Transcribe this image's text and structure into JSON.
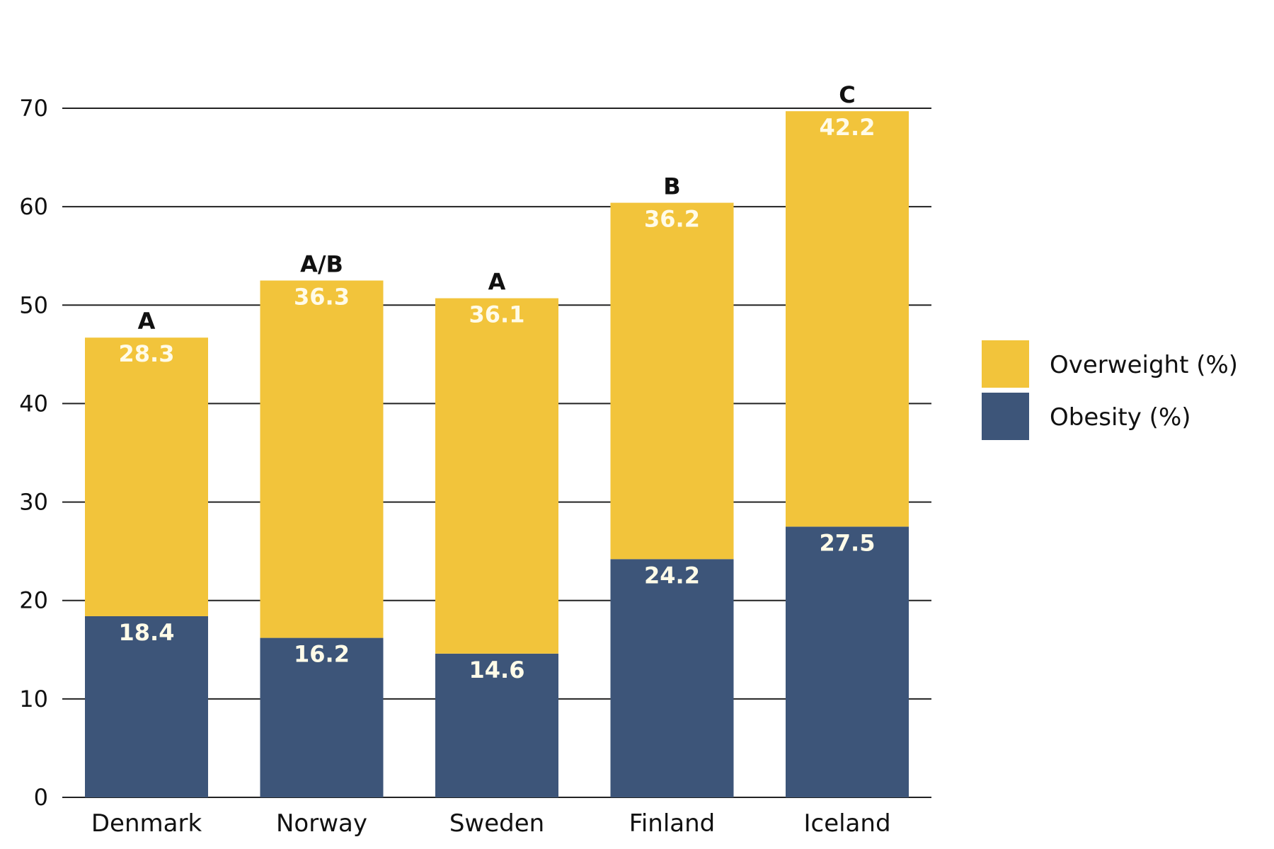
{
  "chart_data": {
    "type": "bar",
    "stacked": true,
    "categories": [
      "Denmark",
      "Norway",
      "Sweden",
      "Finland",
      "Iceland"
    ],
    "series": [
      {
        "name": "Obesity (%)",
        "values": [
          18.4,
          16.2,
          14.6,
          24.2,
          27.5
        ],
        "color": "#3d5579"
      },
      {
        "name": "Overweight (%)",
        "values": [
          28.3,
          36.3,
          36.1,
          36.2,
          42.2
        ],
        "color": "#f2c43b"
      }
    ],
    "annotations": [
      "A",
      "A/B",
      "A",
      "B",
      "C"
    ],
    "yticks": [
      0,
      10,
      20,
      30,
      40,
      50,
      60,
      70
    ],
    "ylim": [
      0,
      70
    ],
    "grid": true,
    "legend_position": "right"
  }
}
